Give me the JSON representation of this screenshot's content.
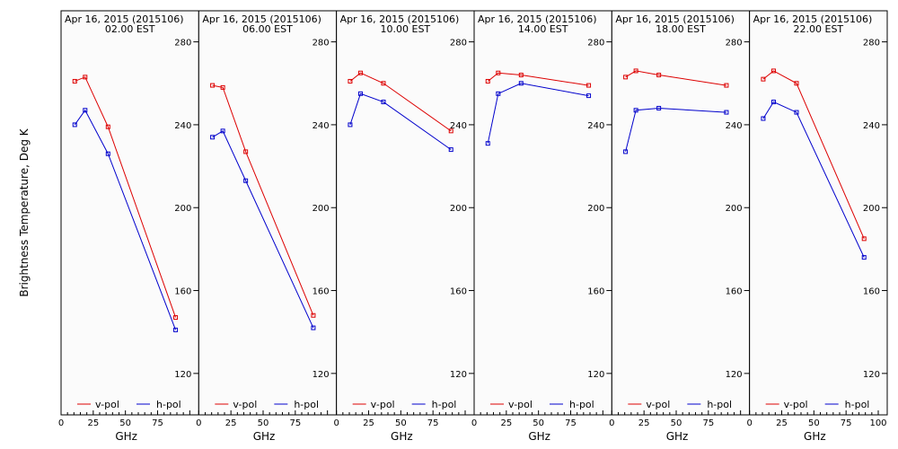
{
  "chart_data": {
    "type": "line",
    "ylabel": "Brightness Temperature, Deg K",
    "xlabel": "GHz",
    "xlim": [
      0,
      100
    ],
    "ylim": [
      100,
      295
    ],
    "xticks": [
      "0",
      "25",
      "50",
      "75",
      "100"
    ],
    "yticks": [
      "120",
      "160",
      "200",
      "240",
      "280"
    ],
    "legend": [
      "v-pol",
      "h-pol"
    ],
    "colors": {
      "v": "#dd0000",
      "h": "#0000cc"
    },
    "x": [
      10.65,
      18.7,
      36.5,
      89.0
    ],
    "panels": [
      {
        "title": "Apr 16, 2015 (2015106)",
        "time": "02.00 EST",
        "v": [
          261,
          263,
          239,
          147
        ],
        "h": [
          240,
          247,
          226,
          141
        ]
      },
      {
        "title": "Apr 16, 2015 (2015106)",
        "time": "06.00 EST",
        "v": [
          259,
          258,
          227,
          148
        ],
        "h": [
          234,
          237,
          213,
          142
        ]
      },
      {
        "title": "Apr 16, 2015 (2015106)",
        "time": "10.00 EST",
        "v": [
          261,
          265,
          260,
          237
        ],
        "h": [
          240,
          255,
          251,
          228
        ]
      },
      {
        "title": "Apr 16, 2015 (2015106)",
        "time": "14.00 EST",
        "v": [
          261,
          265,
          264,
          259
        ],
        "h": [
          231,
          255,
          260,
          254
        ]
      },
      {
        "title": "Apr 16, 2015 (2015106)",
        "time": "18.00 EST",
        "v": [
          263,
          266,
          264,
          259
        ],
        "h": [
          227,
          247,
          248,
          246
        ]
      },
      {
        "title": "Apr 16, 2015 (2015106)",
        "time": "22.00 EST",
        "v": [
          262,
          266,
          260,
          185
        ],
        "h": [
          243,
          251,
          246,
          176
        ]
      }
    ]
  }
}
